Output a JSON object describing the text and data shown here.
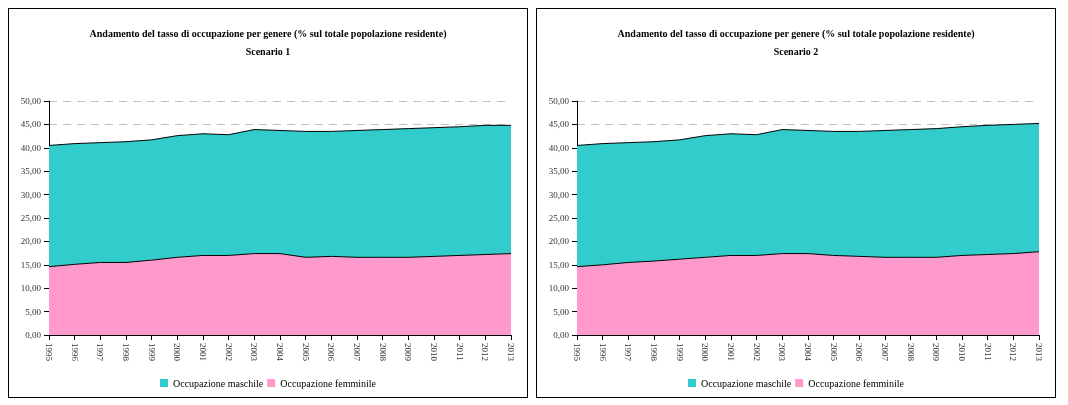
{
  "chart_data": [
    {
      "type": "area",
      "title": "Andamento del tasso di occupazione per genere (% sul totale popolazione residente)",
      "subtitle": "Scenario 1",
      "stacked": true,
      "categories": [
        "1995",
        "1996",
        "1997",
        "1998",
        "1999",
        "2000",
        "2001",
        "2002",
        "2003",
        "2004",
        "2005",
        "2006",
        "2007",
        "2008",
        "2009",
        "2010",
        "2011",
        "2012",
        "2013"
      ],
      "series": [
        {
          "name": "Occupazione femminile",
          "color": "#ff99cc",
          "values": [
            14.6,
            15.1,
            15.5,
            15.5,
            16.0,
            16.6,
            17.0,
            17.0,
            17.4,
            17.4,
            16.6,
            16.8,
            16.6,
            16.6,
            16.6,
            16.8,
            17.0,
            17.2,
            17.4
          ]
        },
        {
          "name": "Occupazione maschile",
          "color": "#33cccc",
          "values": [
            25.9,
            25.8,
            25.6,
            25.8,
            25.7,
            26.0,
            26.0,
            25.8,
            26.5,
            26.3,
            26.9,
            26.7,
            27.1,
            27.3,
            27.5,
            27.5,
            27.5,
            27.6,
            27.4
          ]
        }
      ],
      "ylim": [
        0,
        50
      ],
      "yticks": [
        {
          "value": 0,
          "label": "0,00"
        },
        {
          "value": 5,
          "label": "5,00"
        },
        {
          "value": 10,
          "label": "10,00"
        },
        {
          "value": 15,
          "label": "15,00"
        },
        {
          "value": 20,
          "label": "20,00"
        },
        {
          "value": 25,
          "label": "25,00"
        },
        {
          "value": 30,
          "label": "30,00"
        },
        {
          "value": 35,
          "label": "35,00"
        },
        {
          "value": 40,
          "label": "40,00"
        },
        {
          "value": 45,
          "label": "45,00"
        },
        {
          "value": 50,
          "label": "50,00"
        }
      ],
      "grid": "y",
      "legend": "bottom"
    },
    {
      "type": "area",
      "title": "Andamento del tasso di occupazione per genere (% sul totale popolazione residente)",
      "subtitle": "Scenario 2",
      "stacked": true,
      "categories": [
        "1995",
        "1996",
        "1997",
        "1998",
        "1999",
        "2000",
        "2001",
        "2002",
        "2003",
        "2004",
        "2005",
        "2006",
        "2007",
        "2008",
        "2009",
        "2010",
        "2011",
        "2012",
        "2013"
      ],
      "series": [
        {
          "name": "Occupazione femminile",
          "color": "#ff99cc",
          "values": [
            14.6,
            15.0,
            15.5,
            15.8,
            16.2,
            16.6,
            17.0,
            17.0,
            17.4,
            17.4,
            17.0,
            16.8,
            16.6,
            16.6,
            16.6,
            17.0,
            17.2,
            17.4,
            17.8
          ]
        },
        {
          "name": "Occupazione maschile",
          "color": "#33cccc",
          "values": [
            25.9,
            25.9,
            25.6,
            25.5,
            25.5,
            26.0,
            26.0,
            25.8,
            26.5,
            26.3,
            26.5,
            26.7,
            27.1,
            27.3,
            27.5,
            27.5,
            27.6,
            27.6,
            27.4
          ]
        }
      ],
      "ylim": [
        0,
        50
      ],
      "yticks": [
        {
          "value": 0,
          "label": "0,00"
        },
        {
          "value": 5,
          "label": "5,00"
        },
        {
          "value": 10,
          "label": "10,00"
        },
        {
          "value": 15,
          "label": "15,00"
        },
        {
          "value": 20,
          "label": "20,00"
        },
        {
          "value": 25,
          "label": "25,00"
        },
        {
          "value": 30,
          "label": "30,00"
        },
        {
          "value": 35,
          "label": "35,00"
        },
        {
          "value": 40,
          "label": "40,00"
        },
        {
          "value": 45,
          "label": "45,00"
        },
        {
          "value": 50,
          "label": "50,00"
        }
      ],
      "grid": "y",
      "legend": "bottom"
    }
  ]
}
